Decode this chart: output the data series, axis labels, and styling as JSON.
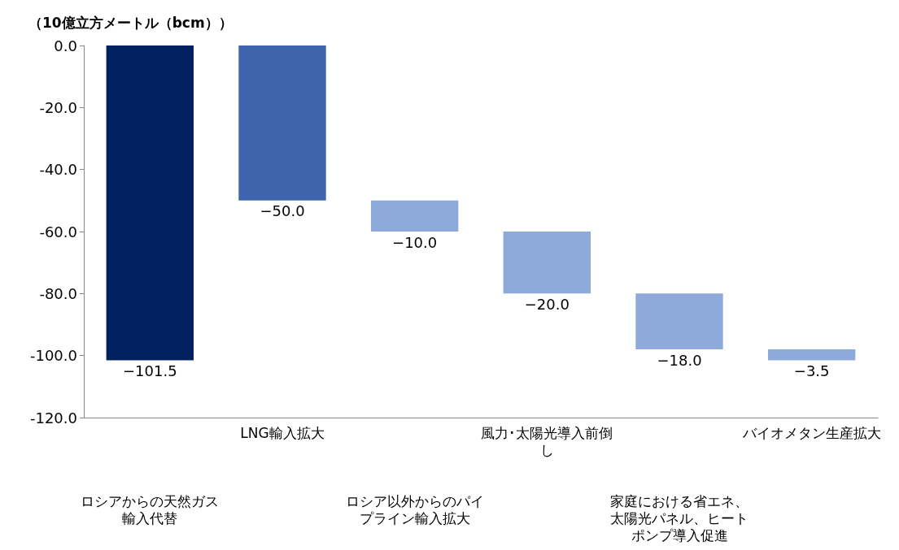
{
  "chart_data": {
    "type": "bar",
    "ylabel": "（10億立方メートル（bcm））",
    "categories": [
      "ロシアからの天然ガス輸入代替",
      "LNG輸入拡大",
      "ロシア以外からのパイプライン輸入拡大",
      "風力･太陽光導入前倒し",
      "家庭における省エネ、太陽光パネル、ヒートポンプ導入促進",
      "バイオメタン生産拡大"
    ],
    "values": [
      -101.5,
      -50.0,
      -10.0,
      -20.0,
      -18.0,
      -3.5
    ],
    "base": [
      0,
      0,
      -50,
      -60,
      -80,
      -98
    ],
    "colors": [
      "#002060",
      "#3d64ad",
      "#8eaadb",
      "#8eaadb",
      "#8eaadb",
      "#8eaadb"
    ],
    "value_labels": [
      "−101.5",
      "−50.0",
      "−10.0",
      "−20.0",
      "−18.0",
      "−3.5"
    ],
    "ylim": [
      -120,
      0
    ],
    "yticks": [
      {
        "value": -120,
        "label": "-120.0"
      },
      {
        "value": -100,
        "label": "-100.0"
      },
      {
        "value": -80,
        "label": "-80.0"
      },
      {
        "value": -60,
        "label": "-60.0"
      },
      {
        "value": -40,
        "label": "-40.0"
      },
      {
        "value": -20,
        "label": "-20.0"
      },
      {
        "value": 0,
        "label": "0.0"
      }
    ],
    "grid": false
  }
}
